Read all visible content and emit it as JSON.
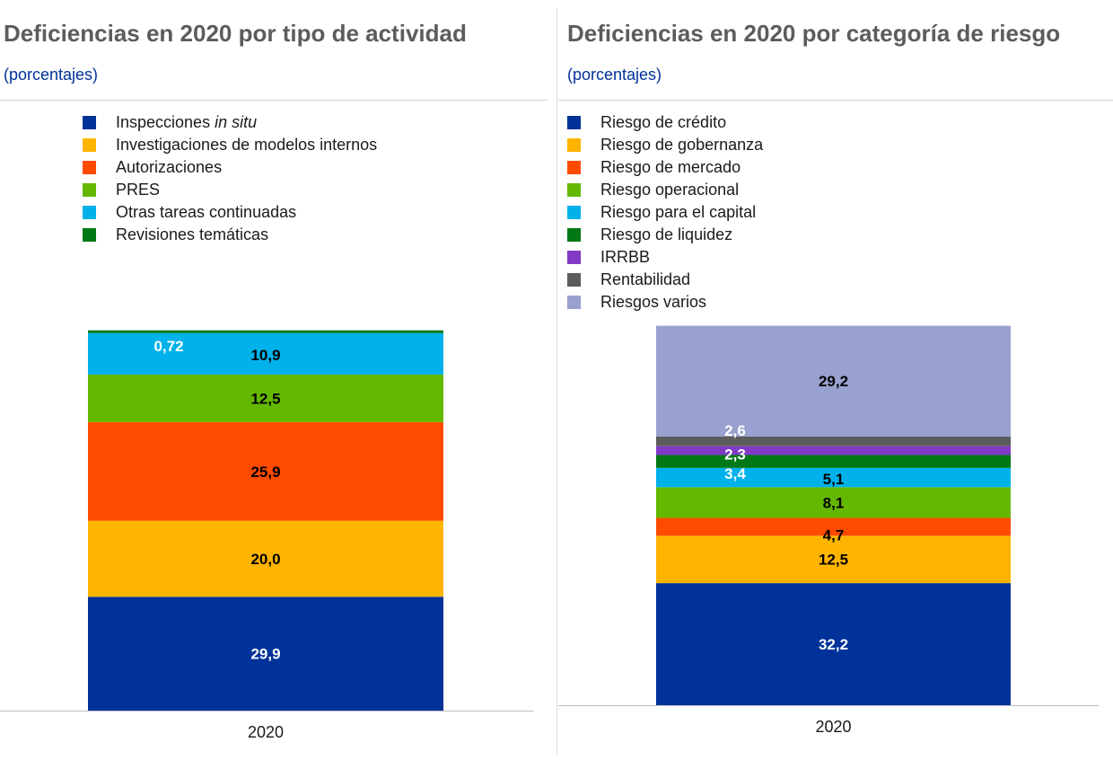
{
  "chart_data": [
    {
      "type": "bar",
      "stacked": true,
      "title": "Deficiencias en 2020 por tipo de actividad",
      "subtitle": "(porcentajes)",
      "categories": [
        "2020"
      ],
      "ylim": [
        0,
        100
      ],
      "series": [
        {
          "name": "Inspecciones in situ",
          "color": "#003299",
          "values": [
            29.9
          ],
          "label": "29,9",
          "label_color": "#ffffff"
        },
        {
          "name": "Investigaciones de modelos internos",
          "color": "#ffb400",
          "values": [
            20.0
          ],
          "label": "20,0",
          "label_color": "#000000"
        },
        {
          "name": "Autorizaciones",
          "color": "#ff4b00",
          "values": [
            25.9
          ],
          "label": "25,9",
          "label_color": "#000000"
        },
        {
          "name": "PRES",
          "color": "#65b800",
          "values": [
            12.5
          ],
          "label": "12,5",
          "label_color": "#000000"
        },
        {
          "name": "Otras tareas continuadas",
          "color": "#00b1ea",
          "values": [
            10.9
          ],
          "label": "10,9",
          "label_color": "#000000"
        },
        {
          "name": "Revisiones temáticas",
          "color": "#007816",
          "values": [
            0.72
          ],
          "label": "0,72",
          "label_color": "#ffffff"
        }
      ]
    },
    {
      "type": "bar",
      "stacked": true,
      "title": "Deficiencias en 2020 por categoría de riesgo",
      "subtitle": "(porcentajes)",
      "categories": [
        "2020"
      ],
      "ylim": [
        0,
        100
      ],
      "series": [
        {
          "name": "Riesgo de crédito",
          "color": "#003299",
          "values": [
            32.2
          ],
          "label": "32,2",
          "label_color": "#ffffff"
        },
        {
          "name": "Riesgo de gobernanza",
          "color": "#ffb400",
          "values": [
            12.5
          ],
          "label": "12,5",
          "label_color": "#000000"
        },
        {
          "name": "Riesgo de mercado",
          "color": "#ff4b00",
          "values": [
            4.7
          ],
          "label": "4,7",
          "label_color": "#000000"
        },
        {
          "name": "Riesgo operacional",
          "color": "#65b800",
          "values": [
            8.1
          ],
          "label": "8,1",
          "label_color": "#000000"
        },
        {
          "name": "Riesgo para el capital",
          "color": "#00b1ea",
          "values": [
            5.1
          ],
          "label": "5,1",
          "label_color": "#000000"
        },
        {
          "name": "Riesgo de liquidez",
          "color": "#007816",
          "values": [
            3.4
          ],
          "label": "3,4",
          "label_color": "#ffffff"
        },
        {
          "name": "IRRBB",
          "color": "#8139c6",
          "values": [
            2.3
          ],
          "label": "2,3",
          "label_color": "#ffffff"
        },
        {
          "name": "Rentabilidad",
          "color": "#5c5c5c",
          "values": [
            2.6
          ],
          "label": "2,6",
          "label_color": "#ffffff"
        },
        {
          "name": "Riesgos varios",
          "color": "#98a1d0",
          "values": [
            29.2
          ],
          "label": "29,2",
          "label_color": "#000000"
        }
      ]
    }
  ]
}
